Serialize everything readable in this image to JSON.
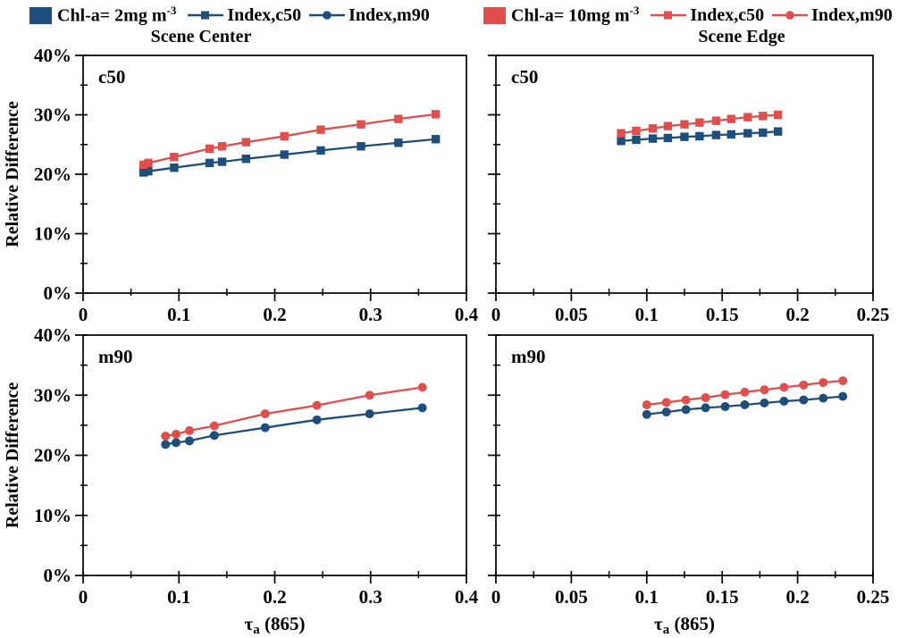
{
  "figure": {
    "ylabel": "Relative Difference",
    "xlabel": {
      "tau": "τ",
      "sub": "a",
      "rest": " (865)"
    },
    "colors": {
      "chl2_blue": "#1D4E7C",
      "chl10_red": "#DE4F4D",
      "axis": "#000000"
    }
  },
  "titles": {
    "left": "Scene Center",
    "right": "Scene Edge"
  },
  "legend": {
    "left": {
      "swatch_color": "#1D4E7C",
      "swatch_label": "Chl-a= 2mg m",
      "swatch_sup": "-3",
      "items": [
        {
          "label": "Index,c50",
          "marker": "square"
        },
        {
          "label": "Index,m90",
          "marker": "circle"
        }
      ]
    },
    "right": {
      "swatch_color": "#DE4F4D",
      "swatch_label": "Chl-a= 10mg m",
      "swatch_sup": "-3",
      "items": [
        {
          "label": "Index,c50",
          "marker": "square"
        },
        {
          "label": "Index,m90",
          "marker": "circle"
        }
      ]
    }
  },
  "chart_data": [
    {
      "type": "line",
      "panel_label": "c50",
      "scene": "Scene Center",
      "xlim": [
        0,
        0.4
      ],
      "xtick_values": [
        0,
        0.1,
        0.2,
        0.3,
        0.4
      ],
      "xticks": [
        "0",
        "0.1",
        "0.2",
        "0.3",
        "0.4"
      ],
      "x_minor_step": 0.05,
      "ylim": [
        0,
        40
      ],
      "ytick_values": [
        0,
        10,
        20,
        30,
        40
      ],
      "yticks": [
        "0%",
        "10%",
        "20%",
        "30%",
        "40%"
      ],
      "y_minor_step": 5,
      "series": [
        {
          "name": "Chl-a= 2mg m-3",
          "legend": "Index,c50",
          "marker": "square",
          "color": "#1D4E7C",
          "x": [
            0.063,
            0.068,
            0.095,
            0.132,
            0.145,
            0.17,
            0.21,
            0.248,
            0.29,
            0.329,
            0.368
          ],
          "y": [
            20.3,
            20.5,
            21.1,
            21.9,
            22.1,
            22.6,
            23.3,
            24.0,
            24.7,
            25.3,
            25.9
          ]
        },
        {
          "name": "Chl-a= 10mg m-3",
          "legend": "Index,c50",
          "marker": "square",
          "color": "#DE4F4D",
          "x": [
            0.063,
            0.068,
            0.095,
            0.132,
            0.145,
            0.17,
            0.21,
            0.248,
            0.29,
            0.329,
            0.368
          ],
          "y": [
            21.6,
            21.9,
            22.9,
            24.3,
            24.7,
            25.4,
            26.4,
            27.5,
            28.4,
            29.3,
            30.1
          ]
        }
      ]
    },
    {
      "type": "line",
      "panel_label": "c50",
      "scene": "Scene Edge",
      "xlim": [
        0,
        0.25
      ],
      "xtick_values": [
        0,
        0.05,
        0.1,
        0.15,
        0.2,
        0.25
      ],
      "xticks": [
        "0",
        "0.05",
        "0.1",
        "0.15",
        "0.2",
        "0.25"
      ],
      "x_minor_step": 0.025,
      "ylim": [
        0,
        40
      ],
      "ytick_values": [
        0,
        10,
        20,
        30,
        40
      ],
      "yticks": [
        "0%",
        "10%",
        "20%",
        "30%",
        "40%"
      ],
      "y_minor_step": 5,
      "series": [
        {
          "name": "Chl-a= 2mg m-3",
          "legend": "Index,c50",
          "marker": "square",
          "color": "#1D4E7C",
          "x": [
            0.083,
            0.093,
            0.104,
            0.114,
            0.125,
            0.135,
            0.146,
            0.156,
            0.167,
            0.177,
            0.187
          ],
          "y": [
            25.6,
            25.8,
            26.0,
            26.1,
            26.3,
            26.4,
            26.6,
            26.7,
            26.9,
            27.0,
            27.2
          ]
        },
        {
          "name": "Chl-a= 10mg m-3",
          "legend": "Index,c50",
          "marker": "square",
          "color": "#DE4F4D",
          "x": [
            0.083,
            0.093,
            0.104,
            0.114,
            0.125,
            0.135,
            0.146,
            0.156,
            0.167,
            0.177,
            0.187
          ],
          "y": [
            26.9,
            27.3,
            27.7,
            28.1,
            28.4,
            28.7,
            29.0,
            29.3,
            29.6,
            29.8,
            30.0
          ]
        }
      ]
    },
    {
      "type": "line",
      "panel_label": "m90",
      "scene": "Scene Center",
      "xlim": [
        0,
        0.4
      ],
      "xtick_values": [
        0,
        0.1,
        0.2,
        0.3,
        0.4
      ],
      "xticks": [
        "0",
        "0.1",
        "0.2",
        "0.3",
        "0.4"
      ],
      "x_minor_step": 0.05,
      "ylim": [
        0,
        40
      ],
      "ytick_values": [
        0,
        10,
        20,
        30,
        40
      ],
      "yticks": [
        "0%",
        "10%",
        "20%",
        "30%",
        "40%"
      ],
      "y_minor_step": 5,
      "series": [
        {
          "name": "Chl-a= 2mg m-3",
          "legend": "Index,m90",
          "marker": "circle",
          "color": "#1D4E7C",
          "x": [
            0.086,
            0.097,
            0.111,
            0.137,
            0.19,
            0.244,
            0.299,
            0.354
          ],
          "y": [
            21.8,
            22.1,
            22.4,
            23.3,
            24.6,
            25.9,
            26.9,
            27.9
          ]
        },
        {
          "name": "Chl-a= 10mg m-3",
          "legend": "Index,m90",
          "marker": "circle",
          "color": "#DE4F4D",
          "x": [
            0.086,
            0.097,
            0.111,
            0.137,
            0.19,
            0.244,
            0.299,
            0.354
          ],
          "y": [
            23.2,
            23.5,
            24.1,
            24.9,
            26.9,
            28.3,
            30.0,
            31.3
          ]
        }
      ]
    },
    {
      "type": "line",
      "panel_label": "m90",
      "scene": "Scene Edge",
      "xlim": [
        0,
        0.25
      ],
      "xtick_values": [
        0,
        0.05,
        0.1,
        0.15,
        0.2,
        0.25
      ],
      "xticks": [
        "0",
        "0.05",
        "0.1",
        "0.15",
        "0.2",
        "0.25"
      ],
      "x_minor_step": 0.025,
      "ylim": [
        0,
        40
      ],
      "ytick_values": [
        0,
        10,
        20,
        30,
        40
      ],
      "yticks": [
        "0%",
        "10%",
        "20%",
        "30%",
        "40%"
      ],
      "y_minor_step": 5,
      "series": [
        {
          "name": "Chl-a= 2mg m-3",
          "legend": "Index,m90",
          "marker": "circle",
          "color": "#1D4E7C",
          "x": [
            0.1,
            0.113,
            0.126,
            0.139,
            0.152,
            0.165,
            0.178,
            0.191,
            0.204,
            0.217,
            0.23
          ],
          "y": [
            26.8,
            27.2,
            27.6,
            27.9,
            28.1,
            28.4,
            28.7,
            29.0,
            29.2,
            29.5,
            29.8
          ]
        },
        {
          "name": "Chl-a= 10mg m-3",
          "legend": "Index,m90",
          "marker": "circle",
          "color": "#DE4F4D",
          "x": [
            0.1,
            0.113,
            0.126,
            0.139,
            0.152,
            0.165,
            0.178,
            0.191,
            0.204,
            0.217,
            0.23
          ],
          "y": [
            28.4,
            28.8,
            29.2,
            29.6,
            30.1,
            30.5,
            30.9,
            31.3,
            31.7,
            32.1,
            32.4
          ]
        }
      ]
    }
  ]
}
